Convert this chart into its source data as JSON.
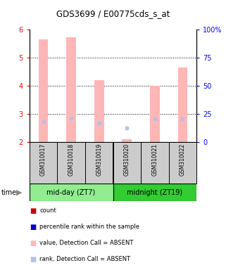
{
  "title": "GDS3699 / E00775cds_s_at",
  "samples": [
    "GSM310017",
    "GSM310018",
    "GSM310019",
    "GSM310020",
    "GSM310021",
    "GSM310022"
  ],
  "groups": [
    "mid-day (ZT7)",
    "midnight (ZT19)"
  ],
  "ylim_left": [
    2,
    6
  ],
  "ylim_right": [
    0,
    100
  ],
  "yticks_left": [
    2,
    3,
    4,
    5,
    6
  ],
  "yticks_right": [
    0,
    25,
    50,
    75,
    100
  ],
  "yticklabels_right": [
    "0",
    "25",
    "50",
    "75",
    "100%"
  ],
  "bar_values": [
    5.65,
    5.72,
    4.2,
    2.1,
    4.0,
    4.65
  ],
  "rank_values": [
    2.72,
    2.85,
    2.68,
    2.48,
    2.82,
    2.82
  ],
  "bar_color_absent": "#FFB6B6",
  "rank_color_absent": "#B8BEE8",
  "bar_width": 0.35,
  "group0_color": "#90EE90",
  "group1_color": "#33CC33",
  "sample_box_color": "#CCCCCC",
  "dotted_yticks": [
    3,
    4,
    5
  ],
  "legend_items": [
    {
      "label": "count",
      "color": "#CC0000"
    },
    {
      "label": "percentile rank within the sample",
      "color": "#0000CC"
    },
    {
      "label": "value, Detection Call = ABSENT",
      "color": "#FFB6B6"
    },
    {
      "label": "rank, Detection Call = ABSENT",
      "color": "#B8BEE8"
    }
  ]
}
